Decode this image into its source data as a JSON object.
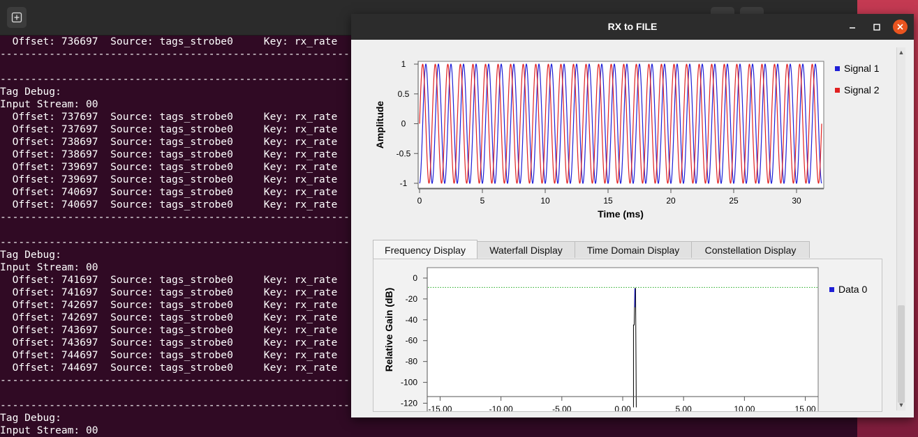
{
  "terminal": {
    "lines": [
      "  Offset: 736697  Source: tags_strobe0     Key: rx_rate",
      "------------------------------------------------------------",
      "",
      "------------------------------------------------------------",
      "Tag Debug:",
      "Input Stream: 00",
      "  Offset: 737697  Source: tags_strobe0     Key: rx_rate",
      "  Offset: 737697  Source: tags_strobe0     Key: rx_rate",
      "  Offset: 738697  Source: tags_strobe0     Key: rx_rate",
      "  Offset: 738697  Source: tags_strobe0     Key: rx_rate",
      "  Offset: 739697  Source: tags_strobe0     Key: rx_rate",
      "  Offset: 739697  Source: tags_strobe0     Key: rx_rate",
      "  Offset: 740697  Source: tags_strobe0     Key: rx_rate",
      "  Offset: 740697  Source: tags_strobe0     Key: rx_rate",
      "------------------------------------------------------------",
      "",
      "------------------------------------------------------------",
      "Tag Debug:",
      "Input Stream: 00",
      "  Offset: 741697  Source: tags_strobe0     Key: rx_rate",
      "  Offset: 741697  Source: tags_strobe0     Key: rx_rate",
      "  Offset: 742697  Source: tags_strobe0     Key: rx_rate",
      "  Offset: 742697  Source: tags_strobe0     Key: rx_rate",
      "  Offset: 743697  Source: tags_strobe0     Key: rx_rate",
      "  Offset: 743697  Source: tags_strobe0     Key: rx_rate",
      "  Offset: 744697  Source: tags_strobe0     Key: rx_rate",
      "  Offset: 744697  Source: tags_strobe0     Key: rx_rate",
      "------------------------------------------------------------",
      "",
      "------------------------------------------------------------",
      "Tag Debug:",
      "Input Stream: 00"
    ]
  },
  "window": {
    "title": "RX to FILE"
  },
  "time_plot": {
    "ylabel": "Amplitude",
    "xlabel": "Time (ms)",
    "yticks": [
      "1",
      "0.5",
      "0",
      "-0.5",
      "-1"
    ],
    "xticks": [
      "0",
      "5",
      "10",
      "15",
      "20",
      "25",
      "30"
    ],
    "legend": [
      {
        "name": "Signal 1",
        "color": "#1f1fd6"
      },
      {
        "name": "Signal 2",
        "color": "#e02020"
      }
    ]
  },
  "tabs": [
    "Frequency Display",
    "Waterfall Display",
    "Time Domain Display",
    "Constellation Display"
  ],
  "freq_plot": {
    "ylabel": "Relative Gain (dB)",
    "yticks": [
      "0",
      "-20",
      "-40",
      "-60",
      "-80",
      "-100",
      "-120"
    ],
    "xticks": [
      "-15.00",
      "-10.00",
      "-5.00",
      "0.00",
      "5.00",
      "10.00",
      "15.00"
    ],
    "legend": [
      {
        "name": "Data 0",
        "color": "#1f1fd6"
      }
    ]
  },
  "chart_data": [
    {
      "type": "line",
      "xlabel": "Time (ms)",
      "ylabel": "Amplitude",
      "xlim": [
        0,
        32
      ],
      "ylim": [
        -1,
        1
      ],
      "series": [
        {
          "name": "Signal 1",
          "frequency_khz": 1.0,
          "amplitude": 1,
          "phase_deg": -90
        },
        {
          "name": "Signal 2",
          "frequency_khz": 1.0,
          "amplitude": 1,
          "phase_deg": 0
        }
      ]
    },
    {
      "type": "line",
      "ylabel": "Relative Gain (dB)",
      "xlim": [
        -16,
        16
      ],
      "ylim": [
        -125,
        10
      ],
      "threshold_db": -9,
      "series": [
        {
          "name": "Data 0",
          "peak_x": 1.0,
          "peak_db": -10,
          "floor_db": -124
        }
      ]
    }
  ]
}
